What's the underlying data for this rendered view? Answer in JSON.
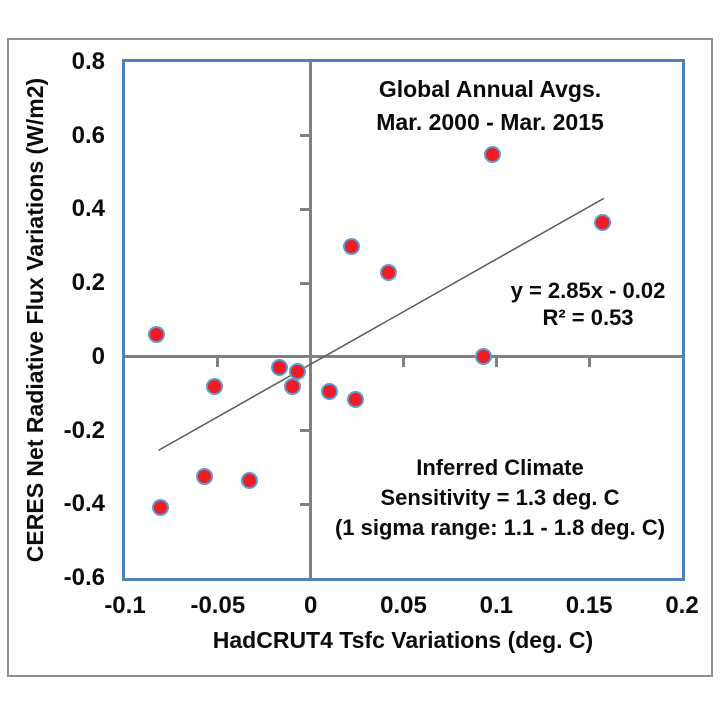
{
  "chart_data": {
    "type": "scatter",
    "annotation_title": {
      "lines": [
        "Global Annual Avgs.",
        "Mar. 2000 - Mar. 2015"
      ]
    },
    "xlabel": "HadCRUT4 Tsfc Variations (deg. C)",
    "ylabel": "CERES Net Radiative Flux Variations (W/m2)",
    "xlim": [
      -0.1,
      0.2
    ],
    "ylim": [
      -0.6,
      0.8
    ],
    "grid": false,
    "x_tick_values": [
      -0.1,
      -0.05,
      0,
      0.05,
      0.1,
      0.15,
      0.2
    ],
    "x_tick_labels": [
      "-0.1",
      "-0.05",
      "0",
      "0.05",
      "0.1",
      "0.15",
      "0.2"
    ],
    "y_tick_values": [
      0.8,
      0.6,
      0.4,
      0.2,
      0,
      -0.2,
      -0.4,
      -0.6
    ],
    "y_tick_labels": [
      "0.8",
      "0.6",
      "0.4",
      "0.2",
      "0",
      "-0.2",
      "-0.4",
      "-0.6"
    ],
    "points": [
      {
        "x": -0.083,
        "y": 0.06
      },
      {
        "x": -0.081,
        "y": -0.41
      },
      {
        "x": -0.057,
        "y": -0.325
      },
      {
        "x": -0.052,
        "y": -0.08
      },
      {
        "x": -0.033,
        "y": -0.335
      },
      {
        "x": -0.017,
        "y": -0.03
      },
      {
        "x": -0.01,
        "y": -0.08
      },
      {
        "x": -0.007,
        "y": -0.04
      },
      {
        "x": 0.01,
        "y": -0.095
      },
      {
        "x": 0.022,
        "y": 0.3
      },
      {
        "x": 0.024,
        "y": -0.115
      },
      {
        "x": 0.042,
        "y": 0.23
      },
      {
        "x": 0.093,
        "y": 0.0
      },
      {
        "x": 0.098,
        "y": 0.55
      },
      {
        "x": 0.157,
        "y": 0.365
      }
    ],
    "trendline": {
      "slope": 2.85,
      "intercept": -0.02,
      "x_start": -0.082,
      "x_end": 0.158,
      "equation_lines": [
        "y = 2.85x - 0.02",
        "R² = 0.53"
      ]
    },
    "sensitivity_note": {
      "lines": [
        "Inferred Climate",
        "Sensitivity = 1.3 deg. C",
        "(1 sigma range: 1.1 - 1.8 deg. C)"
      ]
    },
    "colors": {
      "marker_fill": "#ee1c23",
      "marker_border": "#5b9bd5",
      "plot_border": "#4f81bd",
      "axis_line": "#808080",
      "trend_line": "#595959",
      "frame_border": "#8f8f8f",
      "text": "#0b0b0b"
    }
  }
}
